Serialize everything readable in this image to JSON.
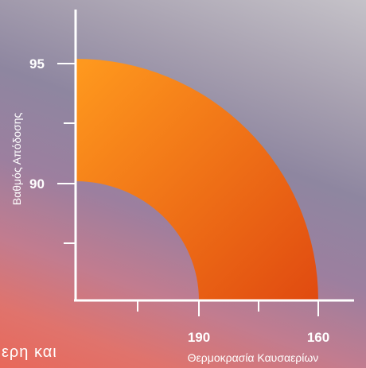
{
  "chart_data": {
    "type": "area",
    "xlabel": "Θερμοκρασία Καυσαερίων",
    "ylabel": "Βαθμός Απόδοσης",
    "x_ticks": [
      "190",
      "160"
    ],
    "y_ticks": [
      "95",
      "90"
    ],
    "x_reversed": true,
    "band": {
      "upper": {
        "y_start": 95.2,
        "x_end": 160
      },
      "lower": {
        "y_start": 90.1,
        "x_end": 190
      }
    },
    "colors": {
      "band_start": "#ff9a1e",
      "band_end": "#e04a10",
      "axis": "#ffffff"
    }
  },
  "fragment_text": "ερη και"
}
